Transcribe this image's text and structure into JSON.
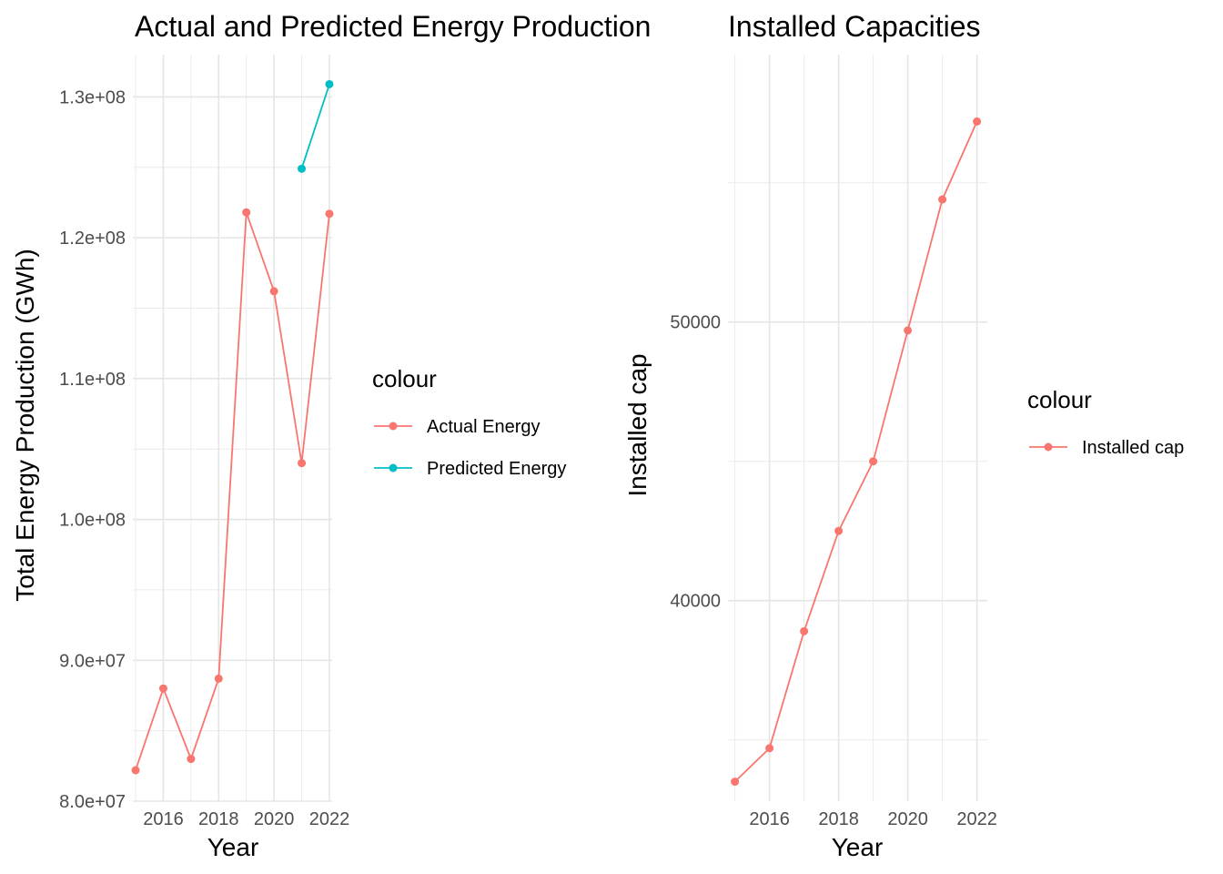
{
  "chart_data": [
    {
      "type": "line",
      "title": "Actual and Predicted Energy Production",
      "xlabel": "Year",
      "ylabel": "Total Energy Production (GWh)",
      "xlim": [
        2014.9,
        2022.1
      ],
      "ylim": [
        80000000,
        133000000
      ],
      "x_ticks": [
        2016,
        2018,
        2020,
        2022
      ],
      "x_tick_labels": [
        "2016",
        "2018",
        "2020",
        "2022"
      ],
      "y_ticks": [
        80000000,
        90000000,
        100000000,
        110000000,
        120000000,
        130000000
      ],
      "y_tick_labels": [
        "8.0e+07",
        "9.0e+07",
        "1.0e+08",
        "1.1e+08",
        "1.2e+08",
        "1.3e+08"
      ],
      "grid": true,
      "legend": {
        "title": "colour",
        "position": "right"
      },
      "series": [
        {
          "name": "Actual Energy",
          "color": "#F8766D",
          "x": [
            2015,
            2016,
            2017,
            2018,
            2019,
            2020,
            2021,
            2022
          ],
          "values": [
            82200000,
            88000000,
            83000000,
            88700000,
            121800000,
            116200000,
            104000000,
            121700000
          ]
        },
        {
          "name": "Predicted Energy",
          "color": "#00BFC4",
          "x": [
            2021,
            2022
          ],
          "values": [
            124900000,
            130900000
          ]
        }
      ]
    },
    {
      "type": "line",
      "title": "Installed Capacities",
      "xlabel": "Year",
      "ylabel": "Installed cap",
      "xlim": [
        2014.8,
        2022.3
      ],
      "ylim": [
        32800,
        59600
      ],
      "x_ticks": [
        2016,
        2018,
        2020,
        2022
      ],
      "x_tick_labels": [
        "2016",
        "2018",
        "2020",
        "2022"
      ],
      "y_ticks": [
        40000,
        50000
      ],
      "y_tick_labels": [
        "40000",
        "50000"
      ],
      "grid": true,
      "legend": {
        "title": "colour",
        "position": "right"
      },
      "series": [
        {
          "name": "Installed cap",
          "color": "#F8766D",
          "x": [
            2015,
            2016,
            2017,
            2018,
            2019,
            2020,
            2021,
            2022
          ],
          "values": [
            33500,
            34700,
            38900,
            42500,
            45000,
            49700,
            54400,
            57200
          ]
        }
      ]
    }
  ]
}
